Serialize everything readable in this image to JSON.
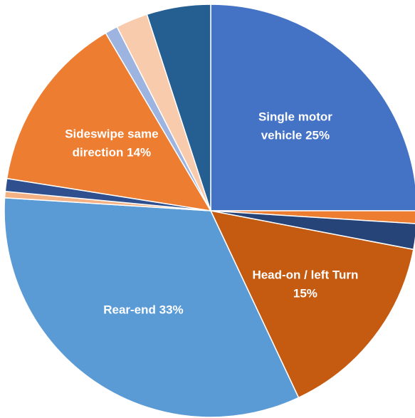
{
  "chart_data": {
    "type": "pie",
    "categories": [
      "Single motor vehicle",
      null,
      null,
      "Head-on / left Turn",
      "Rear-end",
      null,
      null,
      "Sideswipe same direction",
      null,
      null,
      null
    ],
    "values": [
      25,
      1,
      2,
      15,
      33,
      0.5,
      1,
      14,
      1,
      2.5,
      5
    ],
    "value_labels": [
      "25%",
      null,
      null,
      "15%",
      "33%",
      null,
      null,
      "14%",
      null,
      null,
      null
    ],
    "colors": [
      "#4472c4",
      "#ed7d31",
      "#264478",
      "#c55a11",
      "#5b9bd5",
      "#f4b183",
      "#2f4f8f",
      "#ed7d31",
      "#9eb4e0",
      "#f8cbad",
      "#255e91"
    ]
  }
}
